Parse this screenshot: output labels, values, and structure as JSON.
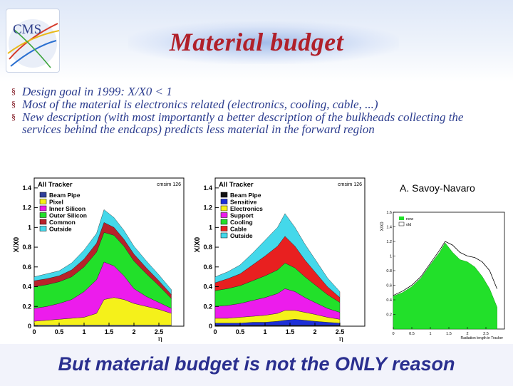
{
  "slide": {
    "title": "Material budget",
    "logo_text": "CMS",
    "bullets": [
      "Design goal in 1999: X/X0 < 1",
      "Most of the material is electronics related (electronics, cooling, cable, ...)",
      "New description (with most importantly a better description of the bulkheads collecting the services behind the endcaps) predicts less material in the forward region"
    ],
    "bullet_marker": "§",
    "author": "A. Savoy-Navaro",
    "footer": "But material budget is not the ONLY reason"
  },
  "chart_data": [
    {
      "type": "area",
      "title": "All Tracker",
      "tag": "cmsim 126",
      "xlabel": "η",
      "ylabel": "X/X0",
      "xlim": [
        0,
        3
      ],
      "ylim": [
        0,
        1.5
      ],
      "x_ticks": [
        "0",
        "0.5",
        "1",
        "1.5",
        "2",
        "2.5"
      ],
      "y_ticks": [
        "0",
        "0.2",
        "0.4",
        "0.6",
        "0.8",
        "1",
        "1.2",
        "1.4"
      ],
      "x": [
        0,
        0.25,
        0.5,
        0.75,
        1.0,
        1.25,
        1.4,
        1.6,
        1.8,
        2.0,
        2.25,
        2.5,
        2.75
      ],
      "series": [
        {
          "name": "Beam Pipe",
          "color": "#2f3f9a",
          "values": [
            0.01,
            0.01,
            0.01,
            0.01,
            0.01,
            0.01,
            0.01,
            0.01,
            0.01,
            0.01,
            0.01,
            0.01,
            0.01
          ]
        },
        {
          "name": "Pixel",
          "color": "#f5f11a",
          "values": [
            0.04,
            0.05,
            0.06,
            0.07,
            0.08,
            0.12,
            0.26,
            0.28,
            0.26,
            0.22,
            0.19,
            0.16,
            0.12
          ]
        },
        {
          "name": "Inner Silicon",
          "color": "#ec1cec",
          "values": [
            0.13,
            0.14,
            0.16,
            0.19,
            0.26,
            0.34,
            0.38,
            0.32,
            0.24,
            0.15,
            0.1,
            0.07,
            0.05
          ]
        },
        {
          "name": "Outer Silicon",
          "color": "#22e02a",
          "values": [
            0.22,
            0.22,
            0.22,
            0.23,
            0.25,
            0.28,
            0.3,
            0.31,
            0.3,
            0.28,
            0.23,
            0.17,
            0.1
          ]
        },
        {
          "name": "Common",
          "color": "#b8222a",
          "values": [
            0.06,
            0.06,
            0.06,
            0.07,
            0.08,
            0.09,
            0.1,
            0.08,
            0.07,
            0.07,
            0.06,
            0.05,
            0.04
          ]
        },
        {
          "name": "Outside",
          "color": "#44d8ea",
          "values": [
            0.04,
            0.05,
            0.05,
            0.07,
            0.09,
            0.1,
            0.13,
            0.1,
            0.09,
            0.08,
            0.07,
            0.06,
            0.05
          ]
        }
      ]
    },
    {
      "type": "area",
      "title": "All Tracker",
      "tag": "cmsim 126",
      "xlabel": "η",
      "ylabel": "X/X0",
      "xlim": [
        0,
        3
      ],
      "ylim": [
        0,
        1.5
      ],
      "x_ticks": [
        "0",
        "0.5",
        "1",
        "1.5",
        "2",
        "2.5"
      ],
      "y_ticks": [
        "0",
        "0.2",
        "0.4",
        "0.6",
        "0.8",
        "1",
        "1.2",
        "1.4"
      ],
      "x": [
        0,
        0.25,
        0.5,
        0.75,
        1.0,
        1.25,
        1.4,
        1.6,
        1.8,
        2.0,
        2.25,
        2.5
      ],
      "series": [
        {
          "name": "Beam Pipe",
          "color": "#111111",
          "values": [
            0.01,
            0.01,
            0.01,
            0.01,
            0.01,
            0.01,
            0.01,
            0.01,
            0.01,
            0.01,
            0.01,
            0.01
          ]
        },
        {
          "name": "Sensitive",
          "color": "#1d2fd8",
          "values": [
            0.02,
            0.02,
            0.02,
            0.03,
            0.03,
            0.04,
            0.05,
            0.06,
            0.05,
            0.04,
            0.03,
            0.02
          ]
        },
        {
          "name": "Electronics",
          "color": "#f5f11a",
          "values": [
            0.05,
            0.05,
            0.06,
            0.06,
            0.07,
            0.08,
            0.1,
            0.09,
            0.08,
            0.07,
            0.05,
            0.04
          ]
        },
        {
          "name": "Support",
          "color": "#ec1cec",
          "values": [
            0.12,
            0.13,
            0.14,
            0.16,
            0.18,
            0.2,
            0.22,
            0.19,
            0.15,
            0.12,
            0.09,
            0.07
          ]
        },
        {
          "name": "Cooling",
          "color": "#22e02a",
          "values": [
            0.16,
            0.17,
            0.18,
            0.2,
            0.22,
            0.24,
            0.26,
            0.24,
            0.21,
            0.18,
            0.14,
            0.1
          ]
        },
        {
          "name": "Cable",
          "color": "#e82020",
          "values": [
            0.08,
            0.1,
            0.12,
            0.16,
            0.2,
            0.24,
            0.27,
            0.22,
            0.17,
            0.13,
            0.08,
            0.05
          ]
        },
        {
          "name": "Outside",
          "color": "#44d8ea",
          "values": [
            0.06,
            0.07,
            0.09,
            0.12,
            0.16,
            0.19,
            0.23,
            0.19,
            0.16,
            0.13,
            0.09,
            0.06
          ]
        }
      ]
    },
    {
      "type": "area",
      "title": "",
      "xlabel": "Radiation length in Tracker",
      "ylabel": "X/X0",
      "xlim": [
        0,
        3
      ],
      "ylim": [
        0,
        1.6
      ],
      "x_ticks": [
        "0",
        "0.5",
        "1",
        "1.5",
        "2",
        "2.5"
      ],
      "y_ticks": [
        "0.2",
        "0.4",
        "0.6",
        "0.8",
        "1",
        "1.2",
        "1.4",
        "1.6"
      ],
      "x": [
        0,
        0.25,
        0.5,
        0.75,
        1.0,
        1.25,
        1.4,
        1.6,
        1.8,
        2.0,
        2.2,
        2.4,
        2.6,
        2.8
      ],
      "series": [
        {
          "name": "new",
          "color": "#22e02a",
          "values": [
            0.45,
            0.5,
            0.58,
            0.7,
            0.88,
            1.05,
            1.18,
            1.05,
            0.95,
            0.92,
            0.85,
            0.72,
            0.55,
            0.3
          ]
        },
        {
          "name": "old",
          "color": "#000000",
          "values": [
            0.46,
            0.52,
            0.6,
            0.72,
            0.9,
            1.08,
            1.2,
            1.15,
            1.05,
            1.0,
            0.98,
            0.92,
            0.8,
            0.55
          ]
        }
      ]
    }
  ]
}
